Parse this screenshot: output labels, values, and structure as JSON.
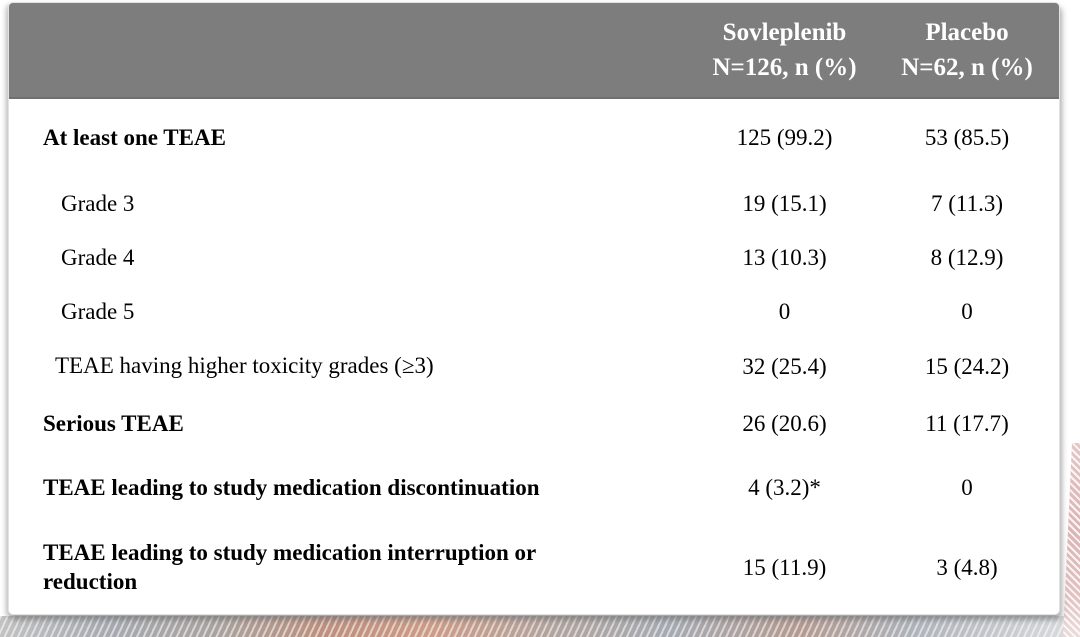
{
  "card": {
    "header": {
      "columns": [
        {
          "name": "Sovleplenib",
          "n_label": "N=126, n (%)"
        },
        {
          "name": "Placebo",
          "n_label": "N=62, n (%)"
        }
      ]
    },
    "rows": [
      {
        "label": "At least one TEAE",
        "sovleplenib": "125 (99.2)",
        "placebo": "53 (85.5)"
      },
      {
        "label": "Grade 3",
        "sovleplenib": "19 (15.1)",
        "placebo": "7 (11.3)"
      },
      {
        "label": "Grade 4",
        "sovleplenib": "13 (10.3)",
        "placebo": "8 (12.9)"
      },
      {
        "label": "Grade 5",
        "sovleplenib": "0",
        "placebo": "0"
      },
      {
        "label": "TEAE having higher toxicity grades (≥3)",
        "sovleplenib": "32 (25.4)",
        "placebo": "15 (24.2)"
      },
      {
        "label": "Serious TEAE",
        "sovleplenib": "26 (20.6)",
        "placebo": "11 (17.7)"
      },
      {
        "label": "TEAE leading to study medication discontinuation",
        "sovleplenib": "4 (3.2)*",
        "placebo": "0"
      },
      {
        "label": "TEAE leading to study medication interruption or reduction",
        "sovleplenib": "15 (11.9)",
        "placebo": "3 (4.8)"
      }
    ]
  },
  "colors": {
    "header_bg": "#7d7d7d",
    "header_text": "#ffffff",
    "body_text": "#000000",
    "card_border": "#e3e3e3",
    "decor_pink": "#dcb4b4",
    "decor_salmon": "#cc9c87",
    "decor_gray": "#a6aab1"
  }
}
